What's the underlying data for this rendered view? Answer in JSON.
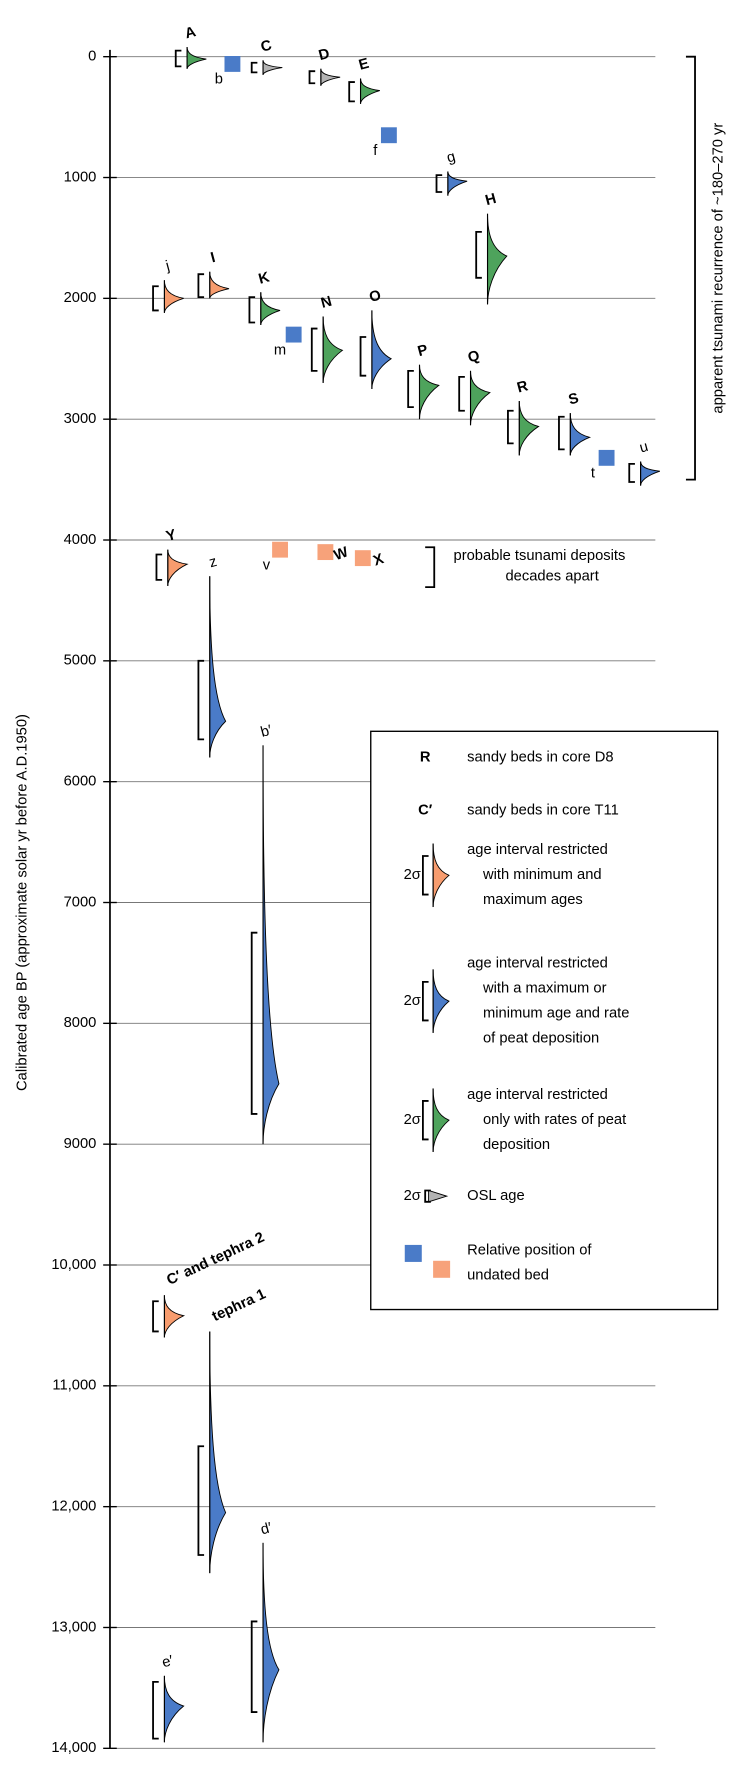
{
  "chart_data": {
    "type": "age-distributions",
    "y_label": "Calibrated age BP (approximate solar yr before A.D.1950)",
    "ylim": [
      0,
      14000
    ],
    "yticks": [
      0,
      1000,
      2000,
      3000,
      4000,
      5000,
      6000,
      7000,
      8000,
      9000,
      {
        "value": 10000,
        "label": "10,000"
      },
      {
        "value": 11000,
        "label": "11,000"
      },
      {
        "value": 12000,
        "label": "12,000"
      },
      {
        "value": 13000,
        "label": "13,000"
      },
      {
        "value": 14000,
        "label": "14,000"
      }
    ],
    "grid": true,
    "beds": [
      {
        "label": "A",
        "label_color": "#c8102e",
        "color": "#4ea35c",
        "peak": 20,
        "range": [
          -80,
          100
        ],
        "bracket": [
          -50,
          80
        ]
      },
      {
        "label": "b",
        "label_color": "#c8102e",
        "color": "#4a7bc8",
        "age": 60
      },
      {
        "label": "C",
        "label_color": "#c8102e",
        "color": "#b3b3b3",
        "peak": 90,
        "range": [
          30,
          150
        ],
        "bracket": [
          50,
          130
        ]
      },
      {
        "label": "D",
        "label_color": "#c8102e",
        "color": "#b3b3b3",
        "peak": 170,
        "range": [
          100,
          240
        ],
        "bracket": [
          120,
          220
        ]
      },
      {
        "label": "E",
        "label_color": "#c8102e",
        "color": "#4ea35c",
        "peak": 280,
        "range": [
          180,
          390
        ],
        "bracket": [
          210,
          370
        ]
      },
      {
        "label": "f",
        "label_color": "#c8102e",
        "color": "#4a7bc8",
        "age": 650
      },
      {
        "label": "g",
        "label_color": "#c8102e",
        "color": "#4a7bc8",
        "peak": 1030,
        "range": [
          950,
          1150
        ],
        "bracket": [
          980,
          1120
        ]
      },
      {
        "label": "H",
        "label_color": "#c8102e",
        "color": "#4ea35c",
        "peak": 1650,
        "range": [
          1300,
          2050
        ],
        "bracket": [
          1450,
          1830
        ]
      },
      {
        "label": "j",
        "label_color": "#8e2a8e",
        "color": "#f79c6e",
        "peak": 2000,
        "range": [
          1850,
          2120
        ],
        "bracket": [
          1900,
          2100
        ]
      },
      {
        "label": "I",
        "label_color": "#c8102e",
        "color": "#f79c6e",
        "peak": 1920,
        "range": [
          1780,
          2000
        ],
        "bracket": [
          1800,
          1990
        ]
      },
      {
        "label": "K",
        "label_color": "#c8102e",
        "color": "#4ea35c",
        "peak": 2100,
        "range": [
          1950,
          2220
        ],
        "bracket": [
          1990,
          2200
        ]
      },
      {
        "label": "m",
        "label_color": "#c8102e",
        "color": "#4a7bc8",
        "age": 2300
      },
      {
        "label": "N",
        "label_color": "#c8102e",
        "color": "#4ea35c",
        "peak": 2430,
        "range": [
          2150,
          2700
        ],
        "bracket": [
          2250,
          2600
        ]
      },
      {
        "label": "O",
        "label_color": "#c8102e",
        "color": "#4a7bc8",
        "peak": 2500,
        "range": [
          2100,
          2750
        ],
        "bracket": [
          2320,
          2640
        ]
      },
      {
        "label": "P",
        "label_color": "#c8102e",
        "color": "#4ea35c",
        "peak": 2720,
        "range": [
          2550,
          3000
        ],
        "bracket": [
          2600,
          2900
        ]
      },
      {
        "label": "Q",
        "label_color": "#c8102e",
        "color": "#4ea35c",
        "peak": 2780,
        "range": [
          2600,
          3050
        ],
        "bracket": [
          2650,
          2930
        ]
      },
      {
        "label": "R",
        "label_color": "#c8102e",
        "color": "#4ea35c",
        "peak": 3060,
        "range": [
          2850,
          3300
        ],
        "bracket": [
          2930,
          3200
        ]
      },
      {
        "label": "S",
        "label_color": "#c8102e",
        "color": "#4a7bc8",
        "peak": 3150,
        "range": [
          2950,
          3300
        ],
        "bracket": [
          2980,
          3250
        ]
      },
      {
        "label": "t",
        "label_color": "#c8102e",
        "color": "#4a7bc8",
        "age": 3320
      },
      {
        "label": "u",
        "label_color": "#c8102e",
        "color": "#4a7bc8",
        "peak": 3430,
        "range": [
          3350,
          3550
        ],
        "bracket": [
          3370,
          3520
        ]
      },
      {
        "label": "Y",
        "label_color": "#8e2a8e",
        "color": "#f79c6e",
        "peak": 4200,
        "range": [
          4080,
          4380
        ],
        "bracket": [
          4120,
          4330
        ]
      },
      {
        "label": "v",
        "label_color": "#c8102e",
        "color": "#f7a27a",
        "age": 4080
      },
      {
        "label": "W",
        "label_color": "#8e2a8e",
        "color": "#f7a27a",
        "age": 4100
      },
      {
        "label": "X",
        "label_color": "#8e2a8e",
        "color": "#f7a27a",
        "age": 4150
      },
      {
        "label": "z",
        "label_color": "#8e2a8e",
        "color": "#4a7bc8",
        "peak": 5500,
        "range": [
          4300,
          5800
        ],
        "bracket": [
          5000,
          5650
        ]
      },
      {
        "label": "b′",
        "label_color": "#8e2a8e",
        "color": "#4a7bc8",
        "peak": 8500,
        "range": [
          5700,
          9000
        ],
        "bracket": [
          7250,
          8750
        ]
      },
      {
        "label": "C′ and tephra 2",
        "label_color": "#8e2a8e",
        "color": "#f79c6e",
        "peak": 10420,
        "range": [
          10250,
          10600
        ],
        "bracket": [
          10300,
          10550
        ]
      },
      {
        "label": "tephra 1",
        "label_color": "#8e2a8e",
        "color": "#4a7bc8",
        "peak": 12050,
        "range": [
          10550,
          12550
        ],
        "bracket": [
          11500,
          12400
        ]
      },
      {
        "label": "d′",
        "label_color": "#8e2a8e",
        "color": "#4a7bc8",
        "peak": 13350,
        "range": [
          12300,
          13950
        ],
        "bracket": [
          12950,
          13700
        ]
      },
      {
        "label": "e′",
        "label_color": "#8e2a8e",
        "color": "#4a7bc8",
        "peak": 13650,
        "range": [
          13400,
          13950
        ],
        "bracket": [
          13450,
          13920
        ]
      }
    ],
    "recurrence": {
      "text": "apparent tsunami recurrence of  ~180–270 yr",
      "range": [
        0,
        3500
      ]
    },
    "probable": {
      "lines": [
        "probable tsunami deposits",
        "decades apart"
      ],
      "range": [
        4060,
        4390
      ]
    },
    "legend": {
      "sigma_label": "2σ",
      "items": [
        {
          "symbol": "R",
          "symbol_color": "#c8102e",
          "lines": [
            "sandy beds in core D8"
          ]
        },
        {
          "symbol": "C′",
          "symbol_color": "#8e2a8e",
          "lines": [
            "sandy beds in core T11"
          ]
        },
        {
          "color": "#f79c6e",
          "lines": [
            "age interval restricted",
            "with minimum and",
            "maximum ages"
          ]
        },
        {
          "color": "#4a7bc8",
          "lines": [
            "age interval restricted",
            "with a maximum or",
            "minimum age and rate",
            "of peat deposition"
          ]
        },
        {
          "color": "#4ea35c",
          "lines": [
            "age interval restricted",
            "only with rates of peat",
            "deposition"
          ]
        },
        {
          "color": "#b3b3b3",
          "lines": [
            "OSL age"
          ]
        },
        {
          "colors": [
            "#4a7bc8",
            "#f7a27a"
          ],
          "lines": [
            "Relative position of",
            "undated bed"
          ]
        }
      ]
    }
  }
}
